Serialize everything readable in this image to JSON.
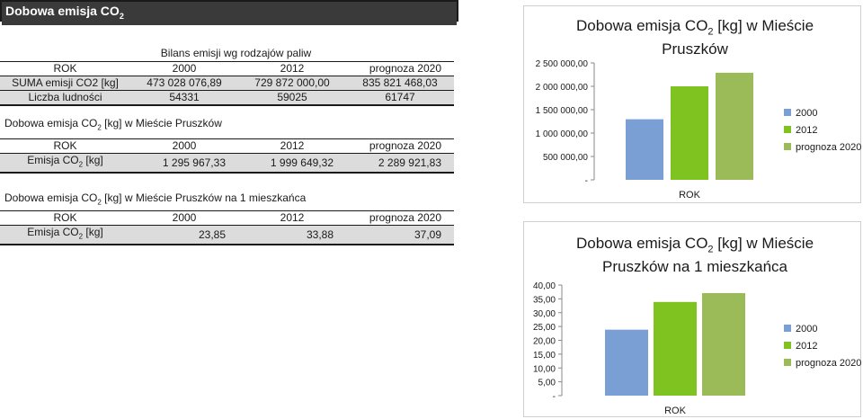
{
  "page": {
    "title_main": "Dobowa emisja CO",
    "title_sub": "2"
  },
  "fuel_table": {
    "caption": "Bilans emisji wg rodzajów paliw",
    "headers": [
      "ROK",
      "2000",
      "2012",
      "prognoza 2020"
    ],
    "rows": [
      [
        "SUMA emisji CO2 [kg]",
        "473 028 076,89",
        "729 872 000,00",
        "835 821 468,03"
      ],
      [
        "Liczba ludności",
        "54331",
        "59025",
        "61747"
      ]
    ]
  },
  "daily_table": {
    "caption_pre": "Dobowa emisja CO",
    "caption_sub": "2",
    "caption_post": " [kg] w Mieście Pruszków",
    "headers": [
      "ROK",
      "2000",
      "2012",
      "prognoza 2020"
    ],
    "row_label_pre": "Emisja CO",
    "row_label_sub": "2",
    "row_label_post": " [kg]",
    "values": [
      "1 295 967,33",
      "1 999 649,32",
      "2 289 921,83"
    ]
  },
  "per_capita_table": {
    "caption_pre": "Dobowa emisja CO",
    "caption_sub": "2",
    "caption_post": " [kg] w Mieście Pruszków na 1 mieszkańca",
    "headers": [
      "ROK",
      "2000",
      "2012",
      "prognoza 2020"
    ],
    "row_label_pre": "Emisja CO",
    "row_label_sub": "2",
    "row_label_post": " [kg]",
    "values": [
      "23,85",
      "33,88",
      "37,09"
    ]
  },
  "chart_data": [
    {
      "type": "bar",
      "title_pre": "Dobowa emisja CO",
      "title_sub": "2",
      "title_post": " [kg] w Mieście",
      "title_line2": "Pruszków",
      "xlabel": "ROK",
      "ylim": [
        0,
        2500000
      ],
      "yticks": [
        "-",
        "500 000,00",
        "1 000 000,00",
        "1 500 000,00",
        "2 000 000,00",
        "2 500 000,00"
      ],
      "series": [
        {
          "name": "2000",
          "values": [
            1295967.33
          ],
          "color": "#7a9fd4"
        },
        {
          "name": "2012",
          "values": [
            1999649.32
          ],
          "color": "#7ec320"
        },
        {
          "name": "prognoza 2020",
          "values": [
            2289921.83
          ],
          "color": "#9bbb59"
        }
      ],
      "legend": "right"
    },
    {
      "type": "bar",
      "title_pre": "Dobowa emisja CO",
      "title_sub": "2",
      "title_post": " [kg] w Mieście",
      "title_line2": "Pruszków na 1 mieszkańca",
      "xlabel": "ROK",
      "ylim": [
        0,
        40
      ],
      "yticks": [
        "-",
        "5,00",
        "10,00",
        "15,00",
        "20,00",
        "25,00",
        "30,00",
        "35,00",
        "40,00"
      ],
      "series": [
        {
          "name": "2000",
          "values": [
            23.85
          ],
          "color": "#7a9fd4"
        },
        {
          "name": "2012",
          "values": [
            33.88
          ],
          "color": "#7ec320"
        },
        {
          "name": "prognoza 2020",
          "values": [
            37.09
          ],
          "color": "#9bbb59"
        }
      ],
      "legend": "right"
    }
  ]
}
